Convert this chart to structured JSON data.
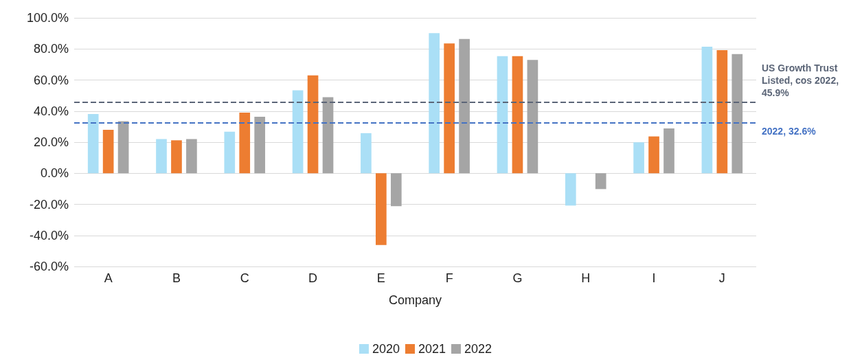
{
  "chart_data": {
    "type": "bar",
    "xlabel": "Company",
    "categories": [
      "A",
      "B",
      "C",
      "D",
      "E",
      "F",
      "G",
      "H",
      "I",
      "J"
    ],
    "series": [
      {
        "name": "2020",
        "color": "#aadff6",
        "values": [
          38.1,
          22,
          26.7,
          53.4,
          25.8,
          90.2,
          75.4,
          -20.8,
          19.9,
          81.4
        ]
      },
      {
        "name": "2021",
        "color": "#ed7d31",
        "values": [
          28,
          21.2,
          39,
          63,
          -46.2,
          83.5,
          75.4,
          null,
          23.7,
          79.2
        ]
      },
      {
        "name": "2022",
        "color": "#a5a5a5",
        "values": [
          33.5,
          22,
          36.4,
          49,
          -21.2,
          86.4,
          72.9,
          -10.2,
          28.8,
          76.7
        ]
      }
    ],
    "ylim": [
      -60,
      100
    ],
    "yticks": [
      {
        "value": -60,
        "label": "-60.0%"
      },
      {
        "value": -40,
        "label": "-40.0%"
      },
      {
        "value": -20,
        "label": "-20.0%"
      },
      {
        "value": 0,
        "label": "0.0%"
      },
      {
        "value": 20,
        "label": "20.0%"
      },
      {
        "value": 40,
        "label": "40.0%"
      },
      {
        "value": 60,
        "label": "60.0%"
      },
      {
        "value": 80,
        "label": "80.0%"
      },
      {
        "value": 100,
        "label": "100.0%"
      }
    ],
    "ref_lines": [
      {
        "axis": "y",
        "value": 45.9,
        "label": "US Growth Trust Listed, cos 2022, 45.9%",
        "color": "#5b6577",
        "line_style": "dashed"
      },
      {
        "axis": "y",
        "value": 32.6,
        "label": "2022, 32.6%",
        "color": "#4472c4",
        "line_style": "dashed"
      }
    ],
    "grid": "y",
    "legend": "bottom"
  }
}
